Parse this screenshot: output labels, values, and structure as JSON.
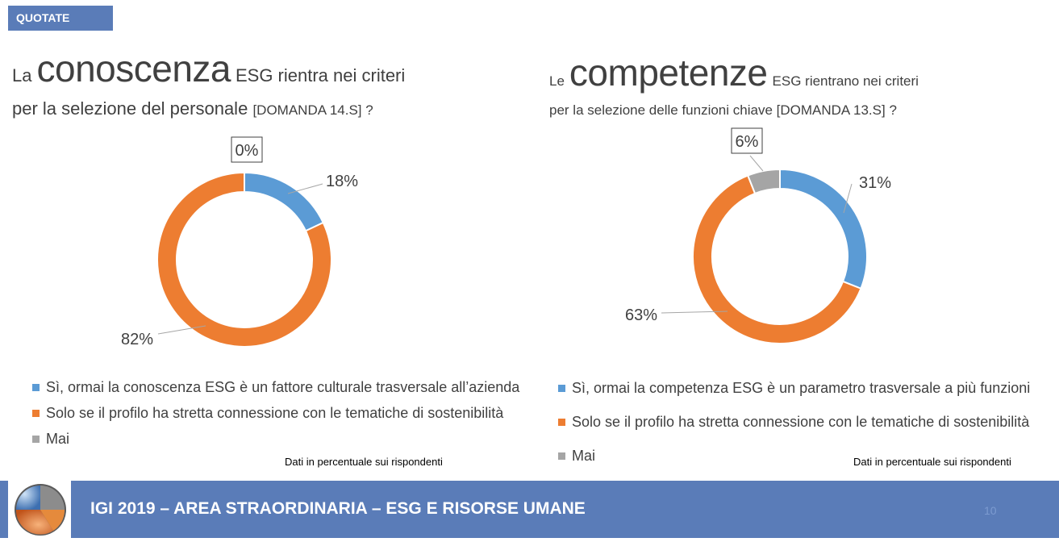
{
  "badge": "QUOTATE",
  "left": {
    "title_pre": "La",
    "title_big": "conoscenza",
    "title_rest": "ESG rientra nei criteri",
    "title_line2": "per la selezione del personale",
    "title_q": "[DOMANDA 14.S] ?",
    "legend": [
      "Sì, ormai la conoscenza ESG è un fattore culturale trasversale all’azienda",
      "Solo se il profilo ha stretta connessione con le tematiche di sostenibilità",
      "Mai"
    ],
    "note": "Dati in percentuale sui rispondenti"
  },
  "right": {
    "title_pre": "Le",
    "title_big": "competenze",
    "title_rest": "ESG rientrano nei criteri",
    "title_line2": "per la selezione delle funzioni chiave [DOMANDA 13.S] ?",
    "legend": [
      "Sì, ormai la competenza ESG è un parametro trasversale a più funzioni",
      "Solo se il profilo ha stretta connessione con le tematiche di sostenibilità",
      "Mai"
    ],
    "note": "Dati in percentuale sui rispondenti"
  },
  "footer": {
    "title": "IGI 2019 – AREA STRAORDINARIA – ESG E RISORSE UMANE",
    "page": "10"
  },
  "colors": {
    "blue": "#5b9bd5",
    "orange": "#ed7d31",
    "gray": "#a5a5a5",
    "bar": "#5a7cb8"
  },
  "chart_data": [
    {
      "type": "pie",
      "categories": [
        "Sì, ormai la conoscenza ESG è un fattore culturale trasversale all’azienda",
        "Solo se il profilo ha stretta connessione con le tematiche di sostenibilità",
        "Mai"
      ],
      "values": [
        18,
        82,
        0
      ],
      "labels": [
        "18%",
        "82%",
        "0%"
      ]
    },
    {
      "type": "pie",
      "categories": [
        "Sì, ormai la competenza ESG è un parametro trasversale a più funzioni",
        "Solo se il profilo ha stretta connessione con le tematiche di sostenibilità",
        "Mai"
      ],
      "values": [
        31,
        63,
        6
      ],
      "labels": [
        "31%",
        "63%",
        "6%"
      ]
    }
  ]
}
